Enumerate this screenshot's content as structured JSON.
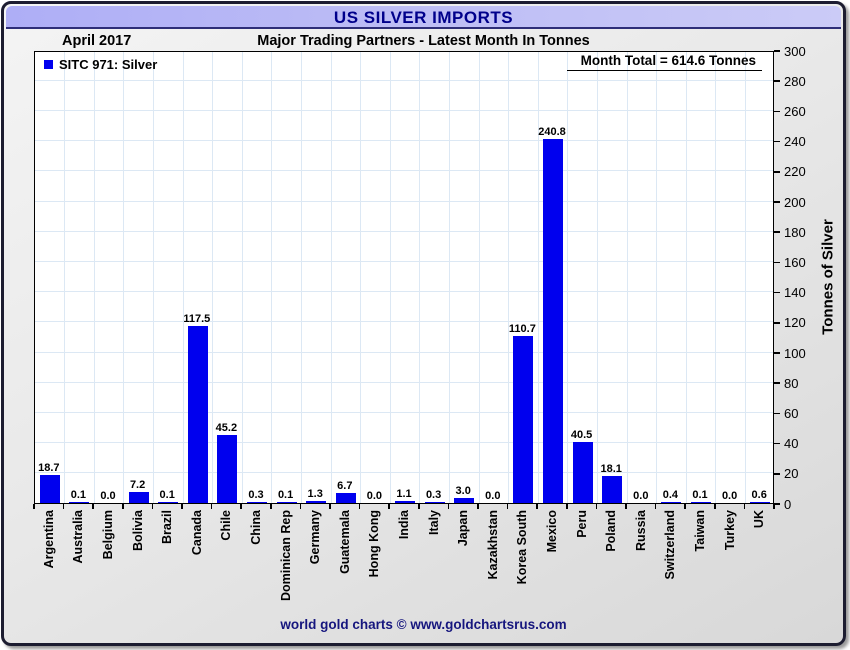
{
  "header": {
    "title": "US SILVER IMPORTS",
    "date_label": "April 2017",
    "subtitle": "Major Trading Partners - Latest Month In Tonnes"
  },
  "legend": {
    "label": "SITC 971: Silver"
  },
  "annotation": {
    "month_total": "Month Total = 614.6 Tonnes"
  },
  "footer": {
    "credit": "world gold charts © www.goldchartsrus.com"
  },
  "colors": {
    "bar": "#0000EE",
    "title_navy": "#00008B",
    "footer_navy": "#16167e",
    "gridline": "#dce8f4",
    "titlebar_lavender": "#bcbcf5"
  },
  "chart_data": {
    "type": "bar",
    "title": "US SILVER IMPORTS",
    "subtitle": "Major Trading Partners - Latest Month In Tonnes",
    "period": "April 2017",
    "month_total_tonnes": 614.6,
    "xlabel": "",
    "ylabel": "Tonnes of Silver",
    "ylim": [
      0,
      300
    ],
    "ytick_step": 20,
    "grid": true,
    "legend_position": "top-left",
    "legend_entries": [
      "SITC 971: Silver"
    ],
    "value_label_decimals": 1,
    "categories": [
      "Argentina",
      "Australia",
      "Belgium",
      "Bolivia",
      "Brazil",
      "Canada",
      "Chile",
      "China",
      "Dominican Rep",
      "Germany",
      "Guatemala",
      "Hong Kong",
      "India",
      "Italy",
      "Japan",
      "Kazakhstan",
      "Korea South",
      "Mexico",
      "Peru",
      "Poland",
      "Russia",
      "Switzerland",
      "Taiwan",
      "Turkey",
      "UK"
    ],
    "values": [
      18.7,
      0.1,
      0.0,
      7.2,
      0.1,
      117.5,
      45.2,
      0.3,
      0.1,
      1.3,
      6.7,
      0.0,
      1.1,
      0.3,
      3.0,
      0.0,
      110.7,
      240.8,
      40.5,
      18.1,
      0.0,
      0.4,
      0.1,
      0.0,
      0.6
    ]
  }
}
